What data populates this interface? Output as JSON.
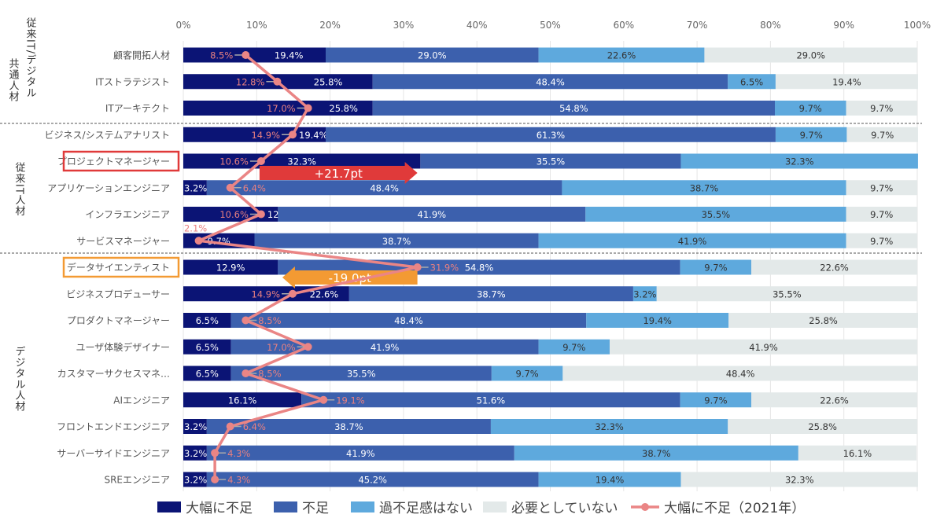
{
  "chart_data": {
    "type": "bar",
    "orientation": "horizontal",
    "stacked": "percent",
    "xlim": [
      0,
      100
    ],
    "x_ticks": [
      "0%",
      "10%",
      "20%",
      "30%",
      "40%",
      "50%",
      "60%",
      "70%",
      "80%",
      "90%",
      "100%"
    ],
    "grid": true,
    "legend_position": "bottom",
    "groups": [
      {
        "label": "従来IT/デジタル共通人材",
        "label_lines": [
          "従来IT/デジタル",
          "共通人材"
        ],
        "rows": [
          0,
          1,
          2
        ]
      },
      {
        "label": "従来IT人材",
        "label_lines": [
          "従来IT人材"
        ],
        "rows": [
          3,
          4,
          5,
          6,
          7
        ]
      },
      {
        "label": "デジタル人材",
        "label_lines": [
          "デジタル人材"
        ],
        "rows": [
          8,
          9,
          10,
          11,
          12,
          13,
          14,
          15,
          16
        ]
      }
    ],
    "categories": [
      "顧客開拓人材",
      "ITストラテジスト",
      "ITアーキテクト",
      "ビジネス/システムアナリスト",
      "プロジェクトマネージャー",
      "アプリケーションエンジニア",
      "インフラエンジニア",
      "サービスマネージャー",
      "データサイエンティスト",
      "ビジネスプロデューサー",
      "プロダクトマネージャー",
      "ユーザ体験デザイナー",
      "カスタマーサクセスマネ…",
      "AIエンジニア",
      "フロントエンドエンジニア",
      "サーバーサイドエンジニア",
      "SREエンジニア"
    ],
    "series": [
      {
        "name": "大幅に不足",
        "color": "#0b1475",
        "values": [
          19.4,
          25.8,
          25.8,
          19.4,
          32.3,
          3.2,
          12.9,
          9.7,
          12.9,
          22.6,
          6.5,
          6.5,
          6.5,
          16.1,
          3.2,
          3.2,
          3.2
        ]
      },
      {
        "name": "不足",
        "color": "#3c60ad",
        "values": [
          29.0,
          48.4,
          54.8,
          61.3,
          35.5,
          48.4,
          41.9,
          38.7,
          54.8,
          38.7,
          48.4,
          41.9,
          35.5,
          51.6,
          38.7,
          41.9,
          45.2
        ]
      },
      {
        "name": "過不足感はない",
        "color": "#5ea9dd",
        "values": [
          22.6,
          6.5,
          9.7,
          9.7,
          32.3,
          38.7,
          35.5,
          41.9,
          9.7,
          3.2,
          19.4,
          9.7,
          9.7,
          9.7,
          32.3,
          38.7,
          19.4
        ]
      },
      {
        "name": "必要としていない",
        "color": "#e3e9e9",
        "values": [
          29.0,
          19.4,
          9.7,
          9.7,
          null,
          9.7,
          9.7,
          9.7,
          22.6,
          35.5,
          25.8,
          41.9,
          48.4,
          22.6,
          25.8,
          16.1,
          32.3
        ]
      }
    ],
    "line_series": {
      "name": "大幅に不足（2021年）",
      "color": "#ea8585",
      "values": [
        8.5,
        12.8,
        17.0,
        14.9,
        10.6,
        6.4,
        10.6,
        2.1,
        31.9,
        14.9,
        8.5,
        17.0,
        8.5,
        19.1,
        6.4,
        4.3,
        4.3
      ]
    },
    "highlights": [
      {
        "category": "プロジェクトマネージャー",
        "color": "#e03a3a",
        "annotation": "+21.7pt",
        "from": 10.6,
        "to": 32.3
      },
      {
        "category": "データサイエンティスト",
        "color": "#f39a33",
        "annotation": "-19.0pt",
        "from": 31.9,
        "to": 12.9
      }
    ]
  }
}
